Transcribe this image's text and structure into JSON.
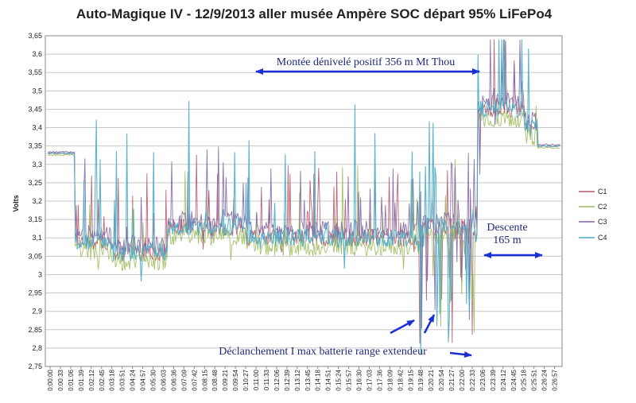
{
  "chart_data": {
    "type": "line",
    "title": "Auto-Magique IV - 12/9/2013 aller musée Ampère SOC départ 95% LiFePo4",
    "ylabel": "Volts",
    "xlabel": "",
    "ylim": [
      2.75,
      3.65
    ],
    "ytick_labels": [
      "2,75",
      "2,8",
      "2,85",
      "2,9",
      "2,95",
      "3",
      "3,05",
      "3,1",
      "3,15",
      "3,2",
      "3,25",
      "3,3",
      "3,35",
      "3,4",
      "3,45",
      "3,5",
      "3,55",
      "3,6",
      "3,65"
    ],
    "x_tick_labels": [
      "0:00:00",
      "0:00:33",
      "0:01:06",
      "0:01:39",
      "0:02:12",
      "0:02:45",
      "0:03:18",
      "0:03:51",
      "0:04:24",
      "0:04:57",
      "0:05:30",
      "0:06:03",
      "0:06:36",
      "0:07:09",
      "0:07:42",
      "0:08:15",
      "0:08:48",
      "0:09:21",
      "0:09:54",
      "0:10:27",
      "0:11:00",
      "0:11:33",
      "0:12:06",
      "0:12:39",
      "0:13:12",
      "0:13:45",
      "0:14:18",
      "0:14:51",
      "0:15:24",
      "0:15:57",
      "0:16:30",
      "0:17:03",
      "0:17:36",
      "0:18:09",
      "0:18:42",
      "0:19:15",
      "0:19:48",
      "0:20:21",
      "0:20:54",
      "0:21:27",
      "0:22:00",
      "0:22:33",
      "0:23:06",
      "0:23:39",
      "0:24:12",
      "0:24:45",
      "0:25:18",
      "0:25:51",
      "0:26:24",
      "0:26:57"
    ],
    "legend_position": "right",
    "grid": true,
    "series": [
      {
        "name": "C1",
        "color": "#b5566a"
      },
      {
        "name": "C2",
        "color": "#9bbb59"
      },
      {
        "name": "C3",
        "color": "#8064a2"
      },
      {
        "name": "C4",
        "color": "#4bacc6"
      }
    ],
    "annotations": [
      {
        "text": "Montée dénivelé positif 356 m Mt Thou"
      },
      {
        "line1": "Descente",
        "line2": "165 m"
      },
      {
        "text": "Déclanchement I max batterie range extendeur"
      }
    ]
  }
}
